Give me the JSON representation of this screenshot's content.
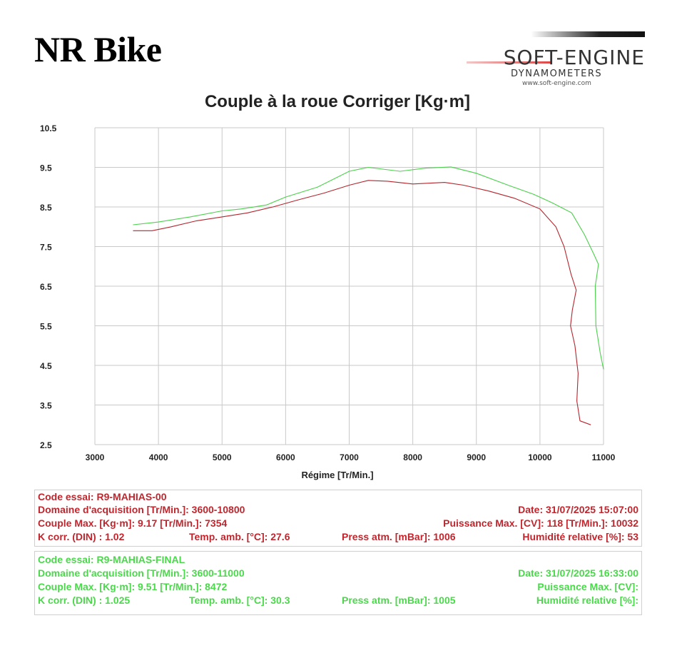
{
  "header": {
    "brand": "NR Bike",
    "logo_main": "SOFT-ENGINE",
    "logo_sub": "DYNAMOMETERS",
    "logo_url": "www.soft-engine.com"
  },
  "colors": {
    "run1": "#b3262e",
    "run2": "#4ccf4c",
    "grid": "#c9c9c9"
  },
  "chart_data": {
    "type": "line",
    "title": "Couple à la roue Corriger [Kg·m]",
    "xlabel": "Régime [Tr/Min.]",
    "ylabel": "",
    "xlim": [
      3000,
      11000
    ],
    "ylim": [
      2.5,
      10.5
    ],
    "x_ticks": [
      "3000",
      "4000",
      "5000",
      "6000",
      "7000",
      "8000",
      "9000",
      "10000",
      "11000"
    ],
    "y_ticks": [
      "10.5",
      "9.5",
      "8.5",
      "7.5",
      "6.5",
      "5.5",
      "4.5",
      "3.5",
      "2.5"
    ],
    "grid": true,
    "series": [
      {
        "name": "R9-MAHIAS-00",
        "color": "#b3262e",
        "points": [
          [
            3600,
            7.9
          ],
          [
            3900,
            7.9
          ],
          [
            4200,
            8.0
          ],
          [
            4600,
            8.15
          ],
          [
            5000,
            8.25
          ],
          [
            5400,
            8.35
          ],
          [
            5800,
            8.5
          ],
          [
            6200,
            8.68
          ],
          [
            6600,
            8.85
          ],
          [
            7000,
            9.05
          ],
          [
            7300,
            9.17
          ],
          [
            7600,
            9.15
          ],
          [
            8000,
            9.08
          ],
          [
            8500,
            9.12
          ],
          [
            8800,
            9.05
          ],
          [
            9200,
            8.9
          ],
          [
            9600,
            8.72
          ],
          [
            10000,
            8.45
          ],
          [
            10250,
            8.0
          ],
          [
            10380,
            7.5
          ],
          [
            10490,
            6.8
          ],
          [
            10570,
            6.4
          ],
          [
            10510,
            5.9
          ],
          [
            10480,
            5.5
          ],
          [
            10550,
            5.0
          ],
          [
            10600,
            4.3
          ],
          [
            10580,
            3.6
          ],
          [
            10630,
            3.1
          ],
          [
            10800,
            3.0
          ]
        ]
      },
      {
        "name": "R9-MAHIAS-FINAL",
        "color": "#4ccf4c",
        "points": [
          [
            3600,
            8.05
          ],
          [
            4000,
            8.12
          ],
          [
            4500,
            8.25
          ],
          [
            5000,
            8.4
          ],
          [
            5300,
            8.45
          ],
          [
            5700,
            8.55
          ],
          [
            6000,
            8.75
          ],
          [
            6500,
            9.0
          ],
          [
            7000,
            9.4
          ],
          [
            7300,
            9.5
          ],
          [
            7800,
            9.4
          ],
          [
            8200,
            9.48
          ],
          [
            8600,
            9.51
          ],
          [
            9000,
            9.35
          ],
          [
            9500,
            9.05
          ],
          [
            9900,
            8.82
          ],
          [
            10200,
            8.6
          ],
          [
            10500,
            8.35
          ],
          [
            10700,
            7.8
          ],
          [
            10850,
            7.3
          ],
          [
            10920,
            7.05
          ],
          [
            10870,
            6.5
          ],
          [
            10880,
            5.5
          ],
          [
            10950,
            4.8
          ],
          [
            11000,
            4.4
          ]
        ]
      }
    ]
  },
  "run1": {
    "code": "Code essai: R9-MAHIAS-00",
    "domaine": "Domaine d'acquisition [Tr/Min.]: 3600-10800",
    "date": "Date: 31/07/2025   15:07:00",
    "couple": "Couple Max. [Kg·m]: 9.17   [Tr/Min.]: 7354",
    "puissance": "Puissance Max. [CV]: 118   [Tr/Min.]: 10032",
    "kcorr": "K corr. (DIN) : 1.02",
    "temp": "Temp. amb. [°C]: 27.6",
    "press": "Press atm. [mBar]: 1006",
    "humid": "Humidité relative [%]: 53"
  },
  "run2": {
    "code": "Code essai: R9-MAHIAS-FINAL",
    "domaine": "Domaine d'acquisition [Tr/Min.]: 3600-11000",
    "date": "Date: 31/07/2025   16:33:00",
    "couple": "Couple Max. [Kg·m]: 9.51   [Tr/Min.]: 8472",
    "puissance": "Puissance Max. [CV]: ",
    "kcorr": "K corr. (DIN) : 1.025",
    "temp": "Temp. amb. [°C]: 30.3",
    "press": "Press atm. [mBar]: 1005",
    "humid": "Humidité relative [%]: "
  }
}
